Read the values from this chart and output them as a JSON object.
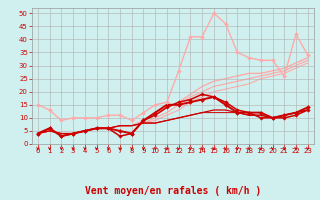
{
  "background_color": "#cff0ee",
  "grid_color": "#b0b0b0",
  "xlabel": "Vent moyen/en rafales ( km/h )",
  "xlabel_color": "#cc0000",
  "xlabel_fontsize": 7,
  "tick_color": "#cc0000",
  "yticks": [
    0,
    5,
    10,
    15,
    20,
    25,
    30,
    35,
    40,
    45,
    50
  ],
  "xticks": [
    0,
    1,
    2,
    3,
    4,
    5,
    6,
    7,
    8,
    9,
    10,
    11,
    12,
    13,
    14,
    15,
    16,
    17,
    18,
    19,
    20,
    21,
    22,
    23
  ],
  "xlim": [
    -0.5,
    23.5
  ],
  "ylim": [
    0,
    52
  ],
  "lines": [
    {
      "x": [
        0,
        1,
        2,
        3,
        4,
        5,
        6,
        7,
        8,
        9,
        10,
        11,
        12,
        13,
        14,
        15,
        16,
        17,
        18,
        19,
        20,
        21,
        22,
        23
      ],
      "y": [
        15,
        13,
        9,
        10,
        10,
        10,
        11,
        11,
        9,
        12,
        15,
        16,
        28,
        41,
        41,
        50,
        46,
        35,
        33,
        32,
        32,
        26,
        42,
        34
      ],
      "color": "#ffaaaa",
      "linewidth": 1.0,
      "marker": "D",
      "markersize": 2.0,
      "zorder": 6
    },
    {
      "x": [
        0,
        1,
        2,
        3,
        4,
        5,
        6,
        7,
        8,
        9,
        10,
        11,
        12,
        13,
        14,
        15,
        16,
        17,
        18,
        19,
        20,
        21,
        22,
        23
      ],
      "y": [
        4,
        5,
        4,
        4,
        5,
        6,
        6,
        7,
        7,
        9,
        12,
        14,
        16,
        19,
        22,
        24,
        25,
        26,
        27,
        27,
        28,
        29,
        31,
        33
      ],
      "color": "#ffaaaa",
      "linewidth": 1.0,
      "marker": null,
      "zorder": 1
    },
    {
      "x": [
        0,
        1,
        2,
        3,
        4,
        5,
        6,
        7,
        8,
        9,
        10,
        11,
        12,
        13,
        14,
        15,
        16,
        17,
        18,
        19,
        20,
        21,
        22,
        23
      ],
      "y": [
        4,
        5,
        4,
        4,
        5,
        6,
        6,
        7,
        7,
        8,
        10,
        12,
        15,
        18,
        20,
        22,
        23,
        24,
        25,
        26,
        27,
        28,
        30,
        32
      ],
      "color": "#ffaaaa",
      "linewidth": 0.9,
      "marker": null,
      "zorder": 1
    },
    {
      "x": [
        0,
        1,
        2,
        3,
        4,
        5,
        6,
        7,
        8,
        9,
        10,
        11,
        12,
        13,
        14,
        15,
        16,
        17,
        18,
        19,
        20,
        21,
        22,
        23
      ],
      "y": [
        4,
        5,
        4,
        4,
        5,
        6,
        6,
        7,
        7,
        8,
        9,
        11,
        13,
        16,
        18,
        20,
        21,
        22,
        23,
        25,
        26,
        27,
        29,
        31
      ],
      "color": "#ffaaaa",
      "linewidth": 0.8,
      "marker": null,
      "zorder": 1
    },
    {
      "x": [
        0,
        1,
        2,
        3,
        4,
        5,
        6,
        7,
        8,
        9,
        10,
        11,
        12,
        13,
        14,
        15,
        16,
        17,
        18,
        19,
        20,
        21,
        22,
        23
      ],
      "y": [
        4,
        6,
        3,
        4,
        5,
        6,
        6,
        5,
        4,
        9,
        12,
        15,
        15,
        16,
        17,
        18,
        15,
        12,
        12,
        12,
        10,
        11,
        12,
        14
      ],
      "color": "#cc0000",
      "linewidth": 1.4,
      "marker": "D",
      "markersize": 2.0,
      "zorder": 5
    },
    {
      "x": [
        0,
        1,
        2,
        3,
        4,
        5,
        6,
        7,
        8,
        9,
        10,
        11,
        12,
        13,
        14,
        15,
        16,
        17,
        18,
        19,
        20,
        21,
        22,
        23
      ],
      "y": [
        4,
        6,
        3,
        4,
        5,
        6,
        6,
        3,
        4,
        9,
        11,
        14,
        16,
        17,
        19,
        18,
        16,
        13,
        12,
        10,
        10,
        10,
        11,
        13
      ],
      "color": "#cc0000",
      "linewidth": 1.1,
      "marker": "D",
      "markersize": 1.8,
      "zorder": 4
    },
    {
      "x": [
        0,
        1,
        2,
        3,
        4,
        5,
        6,
        7,
        8,
        9,
        10,
        11,
        12,
        13,
        14,
        15,
        16,
        17,
        18,
        19,
        20,
        21,
        22,
        23
      ],
      "y": [
        4,
        5,
        4,
        4,
        5,
        6,
        6,
        7,
        7,
        8,
        8,
        9,
        10,
        11,
        12,
        13,
        13,
        12,
        11,
        11,
        10,
        11,
        12,
        13
      ],
      "color": "#cc0000",
      "linewidth": 0.9,
      "marker": null,
      "zorder": 3
    },
    {
      "x": [
        0,
        1,
        2,
        3,
        4,
        5,
        6,
        7,
        8,
        9,
        10,
        11,
        12,
        13,
        14,
        15,
        16,
        17,
        18,
        19,
        20,
        21,
        22,
        23
      ],
      "y": [
        4,
        5,
        4,
        4,
        5,
        6,
        6,
        7,
        7,
        8,
        8,
        9,
        10,
        11,
        12,
        12,
        12,
        12,
        11,
        11,
        10,
        11,
        12,
        13
      ],
      "color": "#cc0000",
      "linewidth": 0.7,
      "marker": null,
      "zorder": 2
    }
  ],
  "arrow_color": "#cc0000"
}
